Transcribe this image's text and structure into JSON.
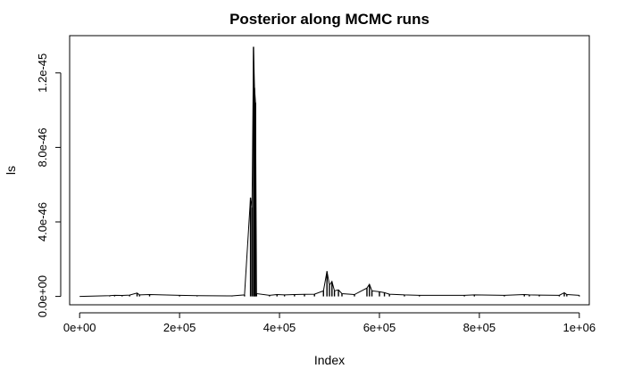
{
  "chart_data": {
    "type": "line",
    "title": "Posterior along MCMC runs",
    "xlabel": "Index",
    "ylabel": "ls",
    "xlim": [
      -20000,
      1020000
    ],
    "ylim": [
      -4.5e-47,
      1.4e-45
    ],
    "x_ticks": [
      {
        "value": 0,
        "label": "0e+00"
      },
      {
        "value": 200000,
        "label": "2e+05"
      },
      {
        "value": 400000,
        "label": "4e+05"
      },
      {
        "value": 600000,
        "label": "6e+05"
      },
      {
        "value": 800000,
        "label": "8e+05"
      },
      {
        "value": 1000000,
        "label": "1e+06"
      }
    ],
    "y_ticks": [
      {
        "value": 0,
        "label": "0.0e+00"
      },
      {
        "value": 4e-46,
        "label": "4.0e-46"
      },
      {
        "value": 8e-46,
        "label": "8.0e-46"
      },
      {
        "value": 1.2e-45,
        "label": "1.2e-45"
      }
    ],
    "grid": false,
    "series": [
      {
        "color": "#000000",
        "points": [
          [
            0,
            0
          ],
          [
            60000,
            4e-48
          ],
          [
            70000,
            6e-48
          ],
          [
            85000,
            5e-48
          ],
          [
            100000,
            7e-48
          ],
          [
            115000,
            1.8e-47
          ],
          [
            120000,
            8e-48
          ],
          [
            140000,
            1e-47
          ],
          [
            200000,
            6e-48
          ],
          [
            235000,
            4e-48
          ],
          [
            305000,
            3e-48
          ],
          [
            330000,
            8e-48
          ],
          [
            342000,
            5.3e-46
          ],
          [
            345000,
            4.8e-46
          ],
          [
            348000,
            1.34e-45
          ],
          [
            350000,
            1.12e-45
          ],
          [
            352000,
            1.04e-45
          ],
          [
            354000,
            1.5e-47
          ],
          [
            380000,
            6e-48
          ],
          [
            395000,
            1e-47
          ],
          [
            410000,
            8e-48
          ],
          [
            430000,
            1e-47
          ],
          [
            450000,
            1.1e-47
          ],
          [
            470000,
            1.2e-47
          ],
          [
            488000,
            3e-47
          ],
          [
            495000,
            1.35e-46
          ],
          [
            500000,
            6e-47
          ],
          [
            505000,
            8e-47
          ],
          [
            510000,
            3e-47
          ],
          [
            518000,
            3.5e-47
          ],
          [
            525000,
            1.5e-47
          ],
          [
            550000,
            1e-47
          ],
          [
            575000,
            4.5e-47
          ],
          [
            580000,
            6.5e-47
          ],
          [
            585000,
            3e-47
          ],
          [
            600000,
            2.5e-47
          ],
          [
            610000,
            2e-47
          ],
          [
            620000,
            1.2e-47
          ],
          [
            650000,
            8e-48
          ],
          [
            680000,
            6e-48
          ],
          [
            770000,
            6e-48
          ],
          [
            790000,
            8e-48
          ],
          [
            850000,
            6e-48
          ],
          [
            890000,
            1e-47
          ],
          [
            900000,
            8e-48
          ],
          [
            920000,
            7e-48
          ],
          [
            960000,
            6e-48
          ],
          [
            970000,
            2e-47
          ],
          [
            975000,
            1e-47
          ],
          [
            1000000,
            6e-48
          ]
        ]
      }
    ]
  }
}
